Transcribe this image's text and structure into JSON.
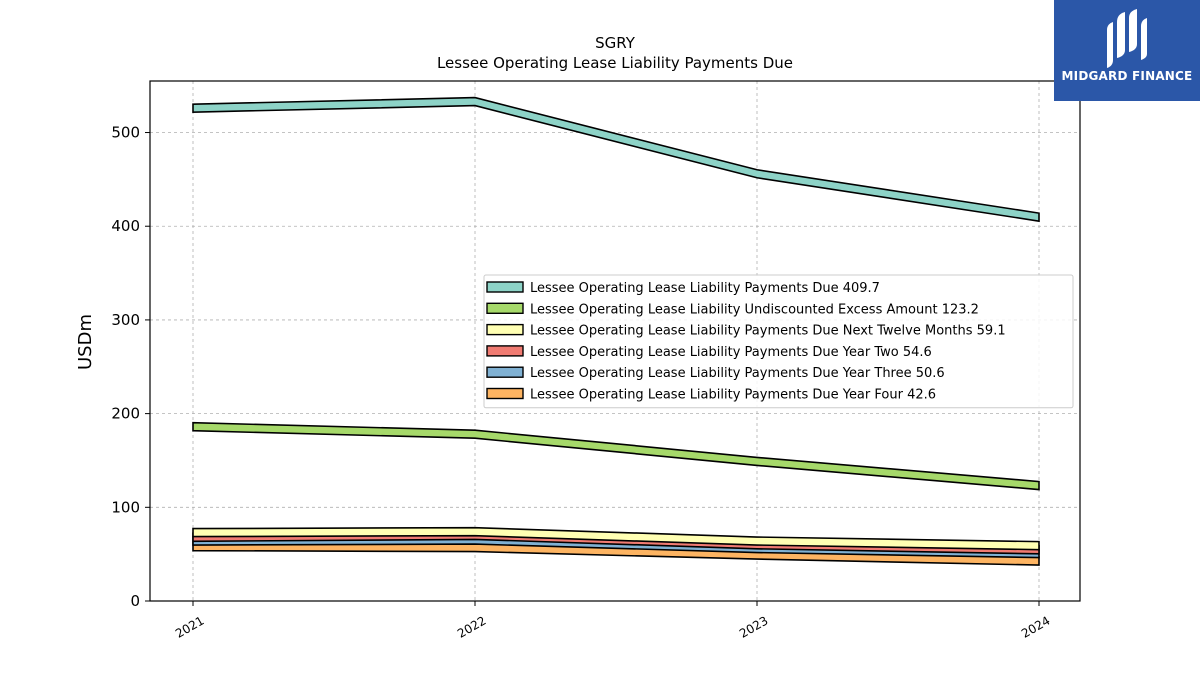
{
  "chart_data": {
    "type": "line",
    "title": "SGRY",
    "subtitle": "Lessee Operating Lease Liability Payments Due",
    "ylabel": "USDm",
    "xlabel": "",
    "categories": [
      "2021",
      "2022",
      "2023",
      "2024"
    ],
    "ylim": [
      0,
      555
    ],
    "yticks": [
      0,
      100,
      200,
      300,
      400,
      500
    ],
    "grid": true,
    "legend_position": "center-right",
    "series": [
      {
        "name": "Lessee Operating Lease Liability Payments Due",
        "legend_value": "409.7",
        "color": "#8dd3c7",
        "values": [
          526,
          533,
          456,
          409.7
        ]
      },
      {
        "name": "Lessee Operating Lease Liability Undiscounted Excess Amount",
        "legend_value": "123.2",
        "color": "#a6d96a",
        "values": [
          186,
          178,
          149,
          123.2
        ]
      },
      {
        "name": "Lessee Operating Lease Liability Payments Due Next Twelve Months",
        "legend_value": "59.1",
        "color": "#ffffb3",
        "values": [
          73,
          74,
          64,
          59.1
        ]
      },
      {
        "name": "Lessee Operating Lease Liability Payments Due Year Two",
        "legend_value": "54.6",
        "color": "#f07b72",
        "values": [
          68,
          70,
          60,
          54.6
        ]
      },
      {
        "name": "Lessee Operating Lease Liability Payments Due Year Three",
        "legend_value": "50.6",
        "color": "#80b1d3",
        "values": [
          64,
          65,
          56,
          50.6
        ]
      },
      {
        "name": "Lessee Operating Lease Liability Payments Due Year Four",
        "legend_value": "42.6",
        "color": "#fdb462",
        "values": [
          58,
          57,
          49,
          42.6
        ]
      }
    ]
  },
  "logo": {
    "text": "MIDGARD FINANCE",
    "color": "#2b57a8"
  }
}
